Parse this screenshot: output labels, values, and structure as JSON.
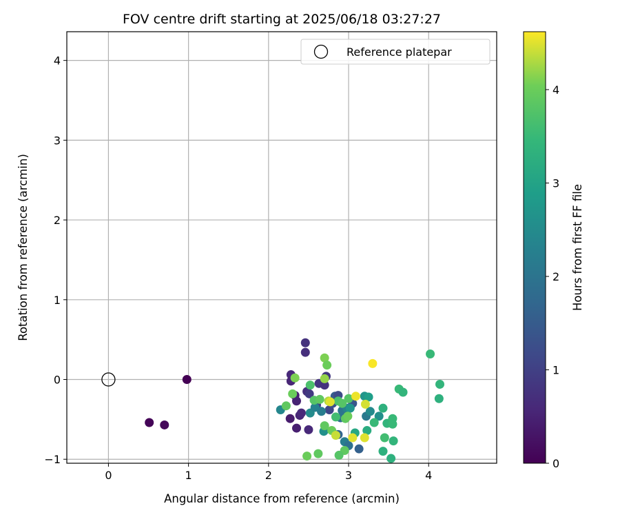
{
  "chart_data": {
    "type": "scatter",
    "title": "FOV centre drift starting at 2025/06/18 03:27:27",
    "xlabel": "Angular distance from reference (arcmin)",
    "ylabel": "Rotation from reference (arcmin)",
    "xlim": [
      -0.52,
      4.85
    ],
    "ylim": [
      -1.05,
      4.36
    ],
    "x_ticks": [
      "0",
      "1",
      "2",
      "3",
      "4"
    ],
    "y_ticks": [
      "−1",
      "0",
      "1",
      "2",
      "3",
      "4"
    ],
    "grid": true,
    "legend": {
      "position": "top-right",
      "entries": [
        "Reference platepar"
      ]
    },
    "reference": {
      "name": "Reference platepar",
      "x": 0,
      "y": 0
    },
    "colorbar": {
      "label": "Hours from first FF file",
      "colormap": "viridis",
      "range": [
        0,
        4.62
      ],
      "ticks": [
        "0",
        "1",
        "2",
        "3",
        "4"
      ]
    },
    "points": [
      {
        "x": 0.98,
        "y": 0.0,
        "c": 0.0
      },
      {
        "x": 0.51,
        "y": -0.54,
        "c": 0.05
      },
      {
        "x": 0.7,
        "y": -0.57,
        "c": 0.1
      },
      {
        "x": 2.46,
        "y": 0.46,
        "c": 0.75
      },
      {
        "x": 2.46,
        "y": 0.34,
        "c": 0.7
      },
      {
        "x": 2.28,
        "y": 0.06,
        "c": 0.6
      },
      {
        "x": 2.28,
        "y": -0.02,
        "c": 0.55
      },
      {
        "x": 2.33,
        "y": -0.2,
        "c": 0.45
      },
      {
        "x": 2.35,
        "y": -0.27,
        "c": 0.5
      },
      {
        "x": 2.39,
        "y": -0.45,
        "c": 0.55
      },
      {
        "x": 2.41,
        "y": -0.42,
        "c": 0.6
      },
      {
        "x": 2.27,
        "y": -0.49,
        "c": 0.4
      },
      {
        "x": 2.35,
        "y": -0.61,
        "c": 0.45
      },
      {
        "x": 2.5,
        "y": -0.63,
        "c": 0.6
      },
      {
        "x": 2.48,
        "y": -0.15,
        "c": 0.7
      },
      {
        "x": 2.51,
        "y": -0.18,
        "c": 0.9
      },
      {
        "x": 2.6,
        "y": -0.32,
        "c": 1.0
      },
      {
        "x": 2.63,
        "y": -0.05,
        "c": 0.8
      },
      {
        "x": 2.7,
        "y": -0.07,
        "c": 0.75
      },
      {
        "x": 2.72,
        "y": 0.04,
        "c": 0.85
      },
      {
        "x": 2.76,
        "y": -0.38,
        "c": 1.1
      },
      {
        "x": 2.8,
        "y": -0.3,
        "c": 1.3
      },
      {
        "x": 2.83,
        "y": -0.21,
        "c": 1.5
      },
      {
        "x": 2.87,
        "y": -0.2,
        "c": 1.2
      },
      {
        "x": 2.87,
        "y": -0.69,
        "c": 1.7
      },
      {
        "x": 2.9,
        "y": -0.48,
        "c": 1.8
      },
      {
        "x": 2.92,
        "y": -0.39,
        "c": 2.0
      },
      {
        "x": 2.95,
        "y": -0.78,
        "c": 2.2
      },
      {
        "x": 3.0,
        "y": -0.83,
        "c": 1.9
      },
      {
        "x": 3.05,
        "y": -0.3,
        "c": 1.4
      },
      {
        "x": 3.13,
        "y": -0.87,
        "c": 1.6
      },
      {
        "x": 3.2,
        "y": -0.21,
        "c": 2.7
      },
      {
        "x": 3.22,
        "y": -0.46,
        "c": 2.1
      },
      {
        "x": 3.25,
        "y": -0.22,
        "c": 2.9
      },
      {
        "x": 3.27,
        "y": -0.4,
        "c": 2.5
      },
      {
        "x": 3.38,
        "y": -0.46,
        "c": 2.6
      },
      {
        "x": 2.15,
        "y": -0.38,
        "c": 2.4
      },
      {
        "x": 2.52,
        "y": -0.42,
        "c": 2.5
      },
      {
        "x": 2.58,
        "y": -0.35,
        "c": 2.3
      },
      {
        "x": 2.66,
        "y": -0.4,
        "c": 2.2
      },
      {
        "x": 2.69,
        "y": -0.65,
        "c": 2.6
      },
      {
        "x": 2.98,
        "y": -0.36,
        "c": 2.3
      },
      {
        "x": 3.02,
        "y": -0.36,
        "c": 2.7
      },
      {
        "x": 3.08,
        "y": -0.67,
        "c": 3.1
      },
      {
        "x": 3.23,
        "y": -0.64,
        "c": 3.2
      },
      {
        "x": 3.43,
        "y": -0.36,
        "c": 3.3
      },
      {
        "x": 3.48,
        "y": -0.55,
        "c": 3.4
      },
      {
        "x": 3.55,
        "y": -0.49,
        "c": 3.5
      },
      {
        "x": 3.55,
        "y": -0.56,
        "c": 3.5
      },
      {
        "x": 3.56,
        "y": -0.77,
        "c": 3.4
      },
      {
        "x": 3.43,
        "y": -0.9,
        "c": 3.3
      },
      {
        "x": 3.45,
        "y": -0.73,
        "c": 3.6
      },
      {
        "x": 3.53,
        "y": -0.99,
        "c": 3.3
      },
      {
        "x": 3.63,
        "y": -0.12,
        "c": 3.5
      },
      {
        "x": 3.68,
        "y": -0.16,
        "c": 3.4
      },
      {
        "x": 4.02,
        "y": 0.32,
        "c": 3.5
      },
      {
        "x": 4.14,
        "y": -0.06,
        "c": 3.4
      },
      {
        "x": 4.13,
        "y": -0.24,
        "c": 3.3
      },
      {
        "x": 2.22,
        "y": -0.33,
        "c": 3.9
      },
      {
        "x": 2.3,
        "y": -0.18,
        "c": 4.0
      },
      {
        "x": 2.33,
        "y": 0.02,
        "c": 4.1
      },
      {
        "x": 2.52,
        "y": -0.07,
        "c": 3.7
      },
      {
        "x": 2.57,
        "y": -0.26,
        "c": 3.8
      },
      {
        "x": 2.64,
        "y": -0.25,
        "c": 3.9
      },
      {
        "x": 2.7,
        "y": 0.27,
        "c": 4.1
      },
      {
        "x": 2.73,
        "y": 0.18,
        "c": 4.0
      },
      {
        "x": 2.7,
        "y": 0.01,
        "c": 4.2
      },
      {
        "x": 2.75,
        "y": -0.27,
        "c": 4.3
      },
      {
        "x": 2.79,
        "y": -0.64,
        "c": 4.0
      },
      {
        "x": 2.7,
        "y": -0.58,
        "c": 3.9
      },
      {
        "x": 2.84,
        "y": -0.47,
        "c": 3.6
      },
      {
        "x": 2.87,
        "y": -0.27,
        "c": 3.7
      },
      {
        "x": 2.92,
        "y": -0.3,
        "c": 3.8
      },
      {
        "x": 2.96,
        "y": -0.49,
        "c": 3.9
      },
      {
        "x": 2.99,
        "y": -0.46,
        "c": 4.0
      },
      {
        "x": 3.0,
        "y": -0.24,
        "c": 3.8
      },
      {
        "x": 2.95,
        "y": -0.89,
        "c": 3.9
      },
      {
        "x": 2.88,
        "y": -0.95,
        "c": 3.8
      },
      {
        "x": 2.62,
        "y": -0.93,
        "c": 3.9
      },
      {
        "x": 2.48,
        "y": -0.96,
        "c": 4.0
      },
      {
        "x": 3.05,
        "y": -0.73,
        "c": 4.5
      },
      {
        "x": 3.09,
        "y": -0.21,
        "c": 4.55
      },
      {
        "x": 3.2,
        "y": -0.73,
        "c": 4.5
      },
      {
        "x": 3.21,
        "y": -0.31,
        "c": 4.45
      },
      {
        "x": 3.3,
        "y": 0.2,
        "c": 4.6
      },
      {
        "x": 3.32,
        "y": -0.54,
        "c": 3.5
      },
      {
        "x": 2.84,
        "y": -0.7,
        "c": 4.4
      },
      {
        "x": 2.77,
        "y": -0.28,
        "c": 4.5
      }
    ]
  }
}
